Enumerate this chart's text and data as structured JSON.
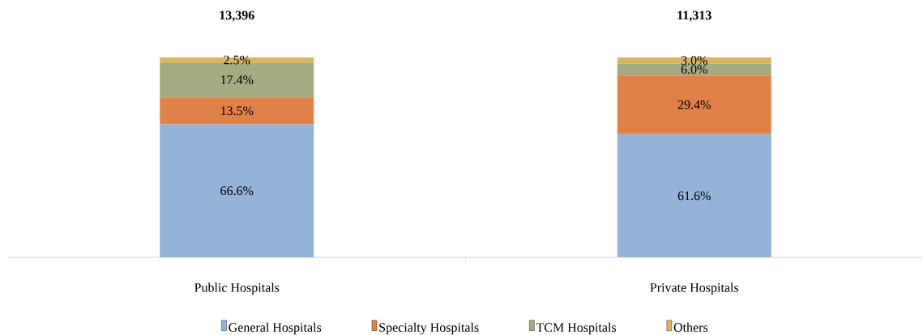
{
  "chart_data": {
    "type": "bar",
    "stacked": true,
    "categories": [
      "Public Hospitals",
      "Private Hospitals"
    ],
    "series": [
      {
        "name": "General Hospitals",
        "color": "#95b3d7",
        "values": [
          66.6,
          61.6
        ],
        "value_labels": [
          "66.6%",
          "61.6%"
        ]
      },
      {
        "name": "Specialty Hospitals",
        "color": "#e0814a",
        "values": [
          13.5,
          29.4
        ],
        "value_labels": [
          "13.5%",
          "29.4%"
        ]
      },
      {
        "name": "TCM Hospitals",
        "color": "#a5ab81",
        "values": [
          17.4,
          6.0
        ],
        "value_labels": [
          "17.4%",
          "6.0%"
        ]
      },
      {
        "name": "Others",
        "color": "#dcb35c",
        "values": [
          2.5,
          3.0
        ],
        "value_labels": [
          "2.5%",
          "3.0%"
        ]
      }
    ],
    "annotations": [
      "13,396",
      "11,313"
    ],
    "legend": "bottom"
  }
}
